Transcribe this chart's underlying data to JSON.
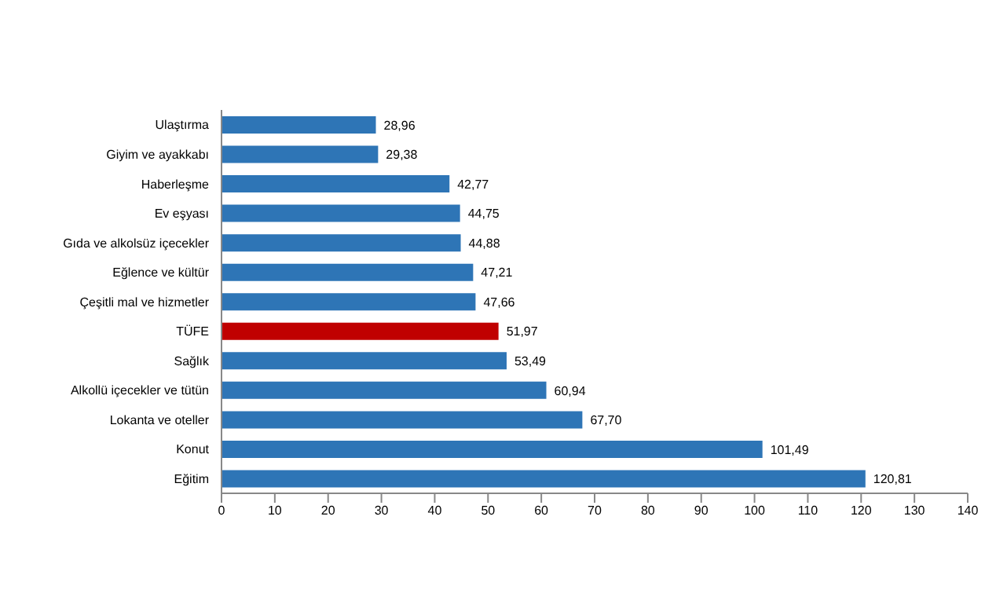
{
  "chart_data": {
    "type": "bar",
    "orientation": "horizontal",
    "categories": [
      "Ulaştırma",
      "Giyim ve ayakkabı",
      "Haberleşme",
      "Ev eşyası",
      "Gıda ve alkolsüz içecekler",
      "Eğlence ve kültür",
      "Çeşitli mal ve hizmetler",
      "TÜFE",
      "Sağlık",
      "Alkollü içecekler ve tütün",
      "Lokanta ve oteller",
      "Konut",
      "Eğitim"
    ],
    "values": [
      28.96,
      29.38,
      42.77,
      44.75,
      44.88,
      47.21,
      47.66,
      51.97,
      53.49,
      60.94,
      67.7,
      101.49,
      120.81
    ],
    "value_labels": [
      "28,96",
      "29,38",
      "42,77",
      "44,75",
      "44,88",
      "47,21",
      "47,66",
      "51,97",
      "53,49",
      "60,94",
      "67,70",
      "101,49",
      "120,81"
    ],
    "colors": [
      "#2e75b6",
      "#2e75b6",
      "#2e75b6",
      "#2e75b6",
      "#2e75b6",
      "#2e75b6",
      "#2e75b6",
      "#c00000",
      "#2e75b6",
      "#2e75b6",
      "#2e75b6",
      "#2e75b6",
      "#2e75b6"
    ],
    "xlim": [
      0,
      140
    ],
    "xticks": [
      0,
      10,
      20,
      30,
      40,
      50,
      60,
      70,
      80,
      90,
      100,
      110,
      120,
      130,
      140
    ],
    "grid": false
  }
}
